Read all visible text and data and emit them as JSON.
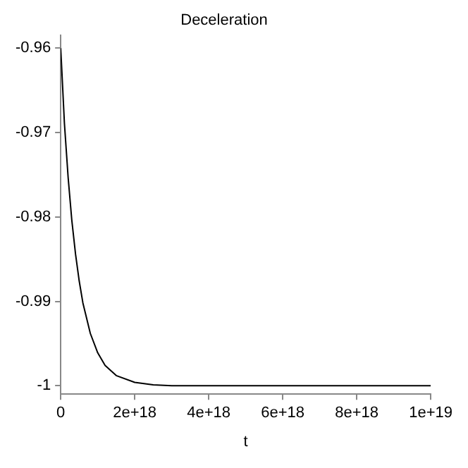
{
  "chart_data": {
    "type": "line",
    "title": "Deceleration",
    "xlabel": "t",
    "x": [
      0,
      1e+17,
      2e+17,
      3e+17,
      4e+17,
      5e+17,
      6e+17,
      8e+17,
      1e+18,
      1.2e+18,
      1.5e+18,
      2e+18,
      2.5e+18,
      3e+18,
      1e+19
    ],
    "series": [
      {
        "color": "#000000",
        "values": [
          -0.96,
          -0.9689,
          -0.9753,
          -0.9804,
          -0.9844,
          -0.9876,
          -0.9902,
          -0.9938,
          -0.9961,
          -0.9976,
          -0.9988,
          -0.9996,
          -0.9999,
          -1,
          -1
        ]
      }
    ],
    "xlim": [
      0,
      1e+19
    ],
    "xticks": [
      0,
      {
        "value": 2e+18,
        "label": "2e+18"
      },
      {
        "value": 4e+18,
        "label": "4e+18"
      },
      {
        "value": 6e+18,
        "label": "6e+18"
      },
      {
        "value": 8e+18,
        "label": "8e+18"
      },
      {
        "value": 1e+19,
        "label": "1e+19"
      }
    ],
    "ylim": [
      -1.001,
      -0.9585
    ],
    "yticks": [
      -1,
      -0.99,
      -0.98,
      -0.97,
      -0.96
    ],
    "grid": false,
    "legend": false,
    "marker": "none",
    "line_style": "solid"
  }
}
